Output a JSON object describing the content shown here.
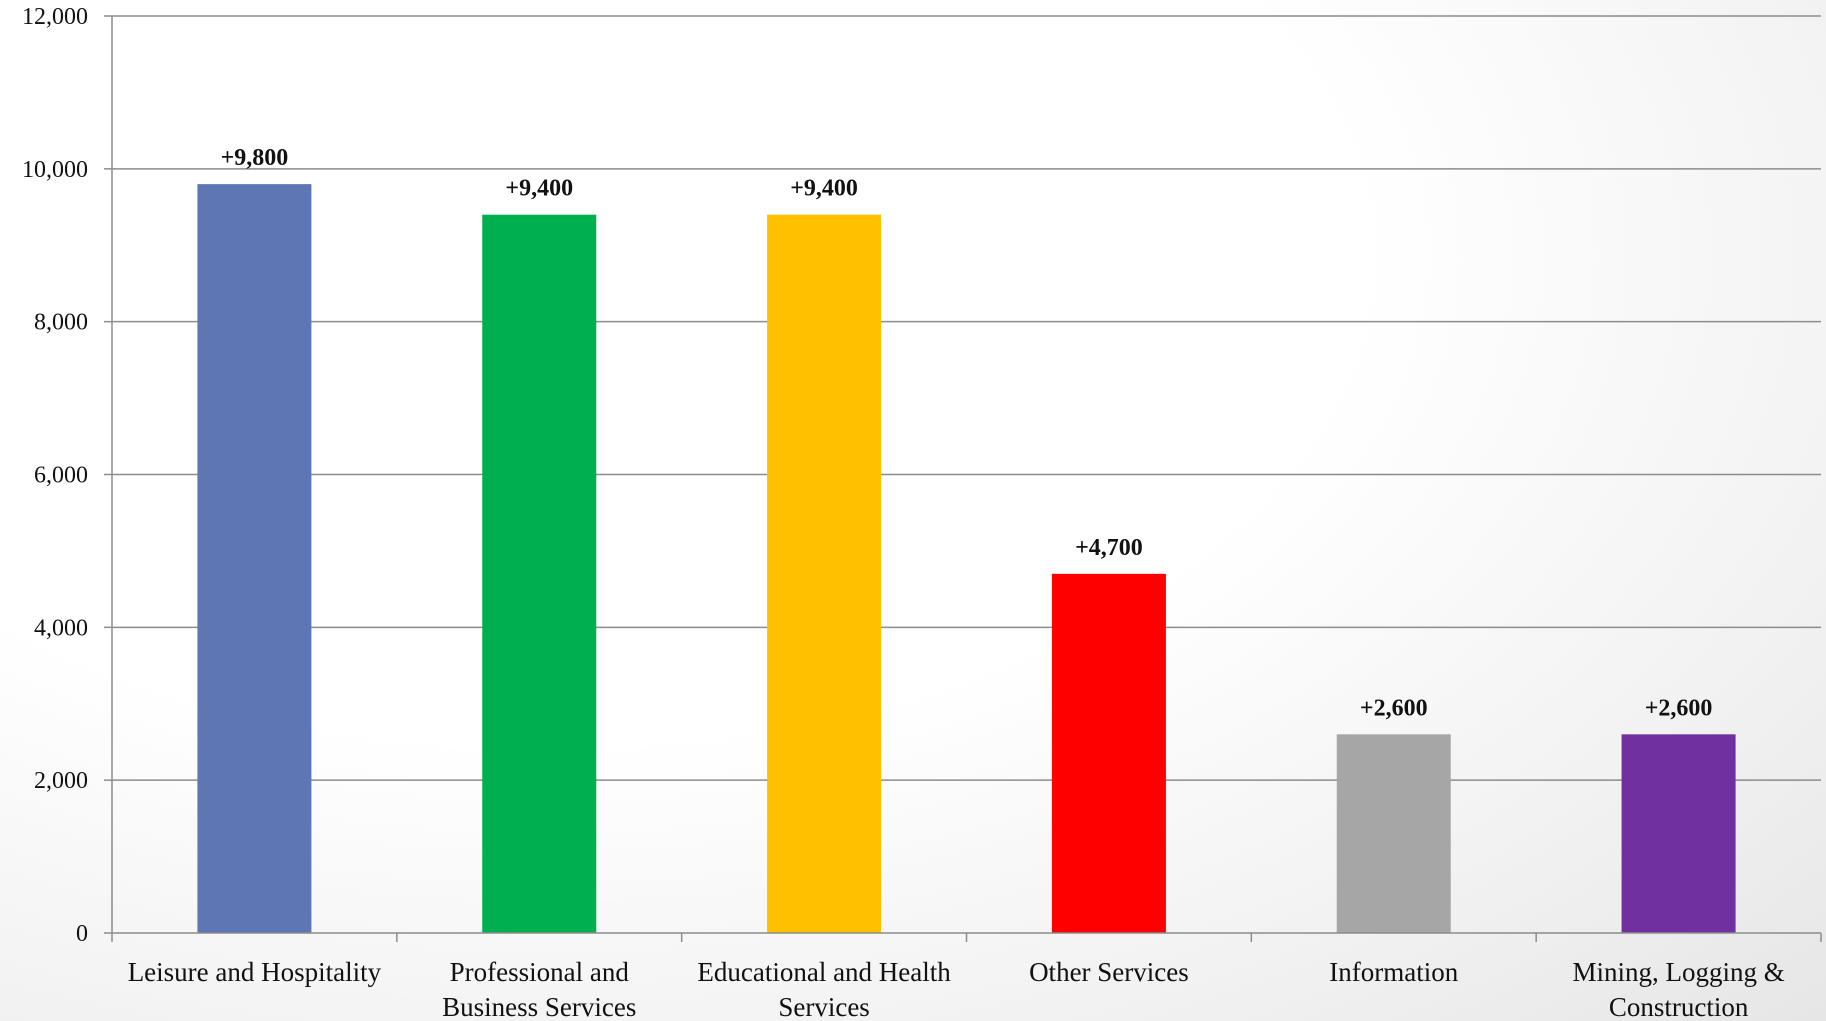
{
  "chart_data": {
    "type": "bar",
    "categories": [
      [
        "Leisure and Hospitality"
      ],
      [
        "Professional and",
        "Business Services"
      ],
      [
        "Educational and Health",
        "Services"
      ],
      [
        "Other Services"
      ],
      [
        "Information"
      ],
      [
        "Mining, Logging &",
        "Construction"
      ]
    ],
    "values": [
      9800,
      9400,
      9400,
      4700,
      2600,
      2600
    ],
    "data_labels": [
      "+9,800",
      "+9,400",
      "+9,400",
      "+4,700",
      "+2,600",
      "+2,600"
    ],
    "colors": [
      "#5f76b4",
      "#00b050",
      "#ffc000",
      "#ff0000",
      "#a6a6a6",
      "#7030a0"
    ],
    "ylim": [
      0,
      12000
    ],
    "yticks": [
      0,
      2000,
      4000,
      6000,
      8000,
      10000,
      12000
    ],
    "ytick_labels": [
      "0",
      "2,000",
      "4,000",
      "6,000",
      "8,000",
      "10,000",
      "12,000"
    ],
    "grid": true,
    "title": "",
    "xlabel": "",
    "ylabel": ""
  }
}
